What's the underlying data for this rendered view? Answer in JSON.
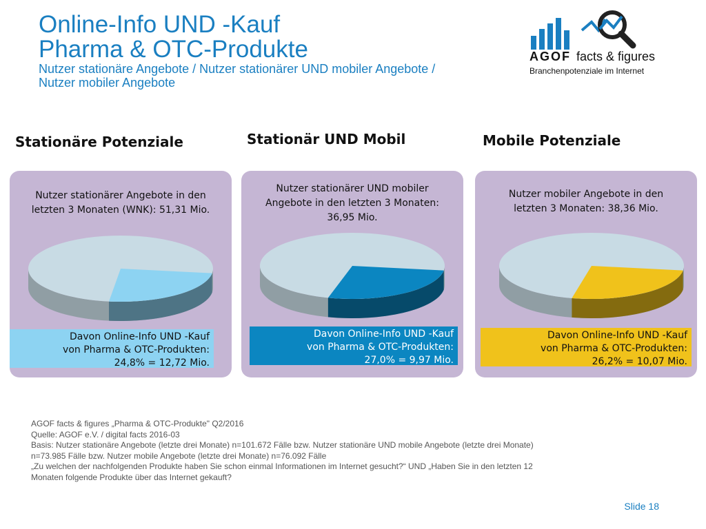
{
  "title": {
    "line1": "Online-Info UND -Kauf",
    "line2": "Pharma & OTC-Produkte",
    "subtitle1": "Nutzer stationäre Angebote / Nutzer stationärer UND mobiler Angebote /",
    "subtitle2": "Nutzer mobiler Angebote"
  },
  "logo": {
    "brand": "AGOF",
    "tagline": "facts & figures",
    "subline": "Branchenpotenziale im Internet",
    "icon": "magnifier-chart-icon"
  },
  "colors": {
    "title": "#1a7fc1",
    "panel": "#c5b6d4",
    "pie_rest": "#c8dbe4",
    "stationary": "#8dd3f2",
    "both": "#0b86c1",
    "mobile": "#f0c21b"
  },
  "chart_data": [
    {
      "type": "pie",
      "heading": "Stationäre Potenziale",
      "description": "Nutzer stationärer Angebote in den letzten 3 Monaten (WNK): 51,31 Mio.",
      "values": [
        24.8,
        75.2
      ],
      "slice_color": "#8dd3f2",
      "highlight": [
        "Davon Online-Info UND -Kauf",
        "von Pharma & OTC-Produkten:",
        "24,8% = 12,72 Mio."
      ]
    },
    {
      "type": "pie",
      "heading": "Stationär UND Mobil",
      "description": "Nutzer stationärer UND mobiler Angebote in den letzten 3 Monaten: 36,95 Mio.",
      "values": [
        27.0,
        73.0
      ],
      "slice_color": "#0b86c1",
      "highlight": [
        "Davon Online-Info UND -Kauf",
        "von Pharma & OTC-Produkten:",
        "27,0% = 9,97 Mio."
      ]
    },
    {
      "type": "pie",
      "heading": "Mobile Potenziale",
      "description": "Nutzer mobiler Angebote in den letzten 3 Monaten: 38,36 Mio.",
      "values": [
        26.2,
        73.8
      ],
      "slice_color": "#f0c21b",
      "highlight": [
        "Davon Online-Info UND -Kauf",
        "von Pharma & OTC-Produkten:",
        "26,2% = 10,07 Mio."
      ]
    }
  ],
  "footer": [
    "AGOF facts & figures „Pharma & OTC-Produkte\" Q2/2016",
    "Quelle: AGOF e.V. / digital facts 2016-03",
    "Basis: Nutzer stationäre Angebote (letzte drei Monate) n=101.672 Fälle bzw. Nutzer stationäre UND mobile Angebote (letzte drei Monate)",
    "n=73.985 Fälle bzw. Nutzer mobile Angebote (letzte drei Monate) n=76.092 Fälle",
    "„Zu welchen der nachfolgenden Produkte haben Sie schon einmal Informationen im Internet gesucht?“ UND „Haben Sie in den letzten 12",
    "Monaten folgende Produkte über das Internet gekauft?"
  ],
  "slide": "Slide 18"
}
